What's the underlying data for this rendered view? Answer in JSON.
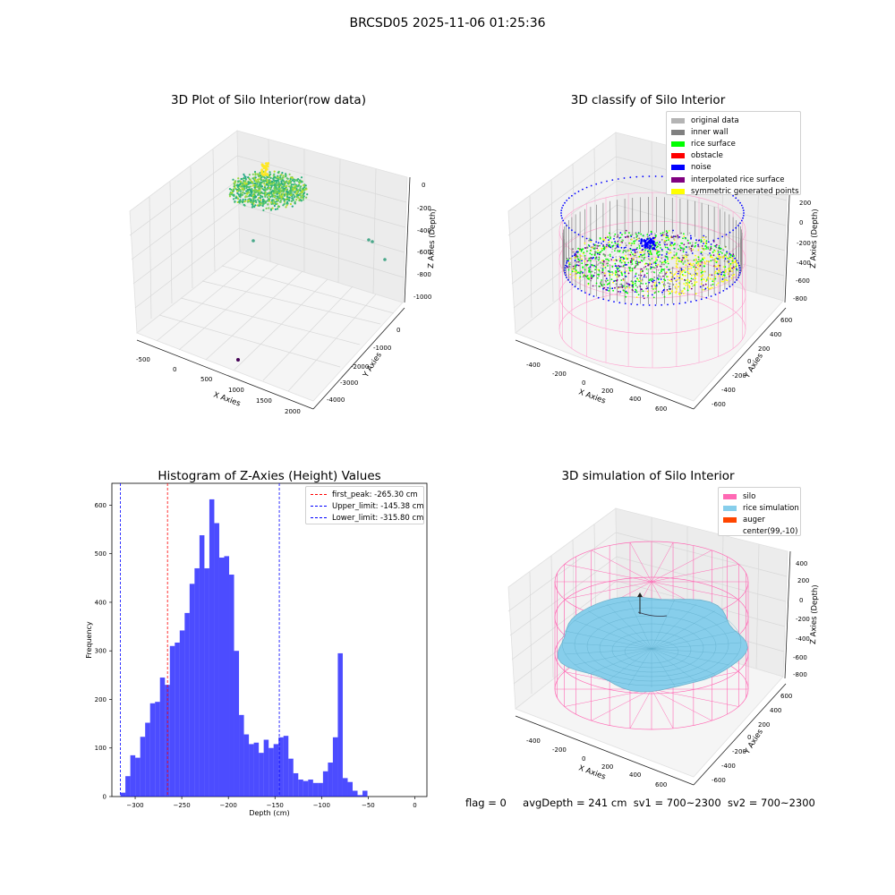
{
  "suptitle": "BRCSD05 2025-11-06 01:25:36",
  "panels": {
    "raw": {
      "title": "3D Plot of Silo Interior(row data)",
      "xlabel": "X Axies",
      "ylabel": "Y Axies",
      "zlabel": "Z Axies (Depth)",
      "xticks": [
        "-500",
        "0",
        "500",
        "1000",
        "1500",
        "2000"
      ],
      "yticks": [
        "0",
        "-1000",
        "-2000",
        "-3000",
        "-4000"
      ],
      "zticks": [
        "0",
        "-200",
        "-400",
        "-600",
        "-800",
        "-1000"
      ]
    },
    "classify": {
      "title": "3D classify of Silo Interior",
      "xlabel": "X Axies",
      "ylabel": "Y Axies",
      "zlabel": "Z Axies (Depth)",
      "xticks": [
        "-400",
        "-200",
        "0",
        "200",
        "400",
        "600"
      ],
      "yticks": [
        "600",
        "400",
        "200",
        "0",
        "-200",
        "-400",
        "-600"
      ],
      "zticks": [
        "200",
        "0",
        "-200",
        "-400",
        "-600",
        "-800"
      ],
      "legend": [
        {
          "label": "original data",
          "color": "#b4b4b4"
        },
        {
          "label": "inner wall",
          "color": "#808080"
        },
        {
          "label": "rice surface",
          "color": "#00ff00"
        },
        {
          "label": "obstacle",
          "color": "#ff0000"
        },
        {
          "label": "noise",
          "color": "#0000ff"
        },
        {
          "label": "interpolated rice surface",
          "color": "#800080"
        },
        {
          "label": "symmetric generated points",
          "color": "#ffff00"
        }
      ]
    },
    "simulation": {
      "title": "3D simulation of Silo Interior",
      "xlabel": "X Axies",
      "ylabel": "Y Axies",
      "zlabel": "Z Axies (Depth)",
      "xticks": [
        "-400",
        "-200",
        "0",
        "200",
        "400",
        "600"
      ],
      "yticks": [
        "600",
        "400",
        "200",
        "0",
        "-200",
        "-400",
        "-600"
      ],
      "zticks": [
        "400",
        "200",
        "0",
        "-200",
        "-400",
        "-600",
        "-800"
      ],
      "legend": [
        {
          "label": "silo",
          "color": "#ff69b4"
        },
        {
          "label": "rice simulation",
          "color": "#87ceeb"
        },
        {
          "label": "auger",
          "color": "#ff4500"
        },
        {
          "label": "center(99,-10)",
          "color": ""
        }
      ]
    }
  },
  "chart_data": {
    "type": "bar",
    "title": "Histogram of Z-Axies (Height) Values",
    "xlabel": "Depth (cm)",
    "ylabel": "Frequency",
    "xlim": [
      -325,
      13
    ],
    "ylim": [
      0,
      645
    ],
    "xticks": [
      -300,
      -250,
      -200,
      -150,
      -100,
      -50,
      0
    ],
    "yticks": [
      0,
      100,
      200,
      300,
      400,
      500,
      600
    ],
    "bar_color": "#0000ff",
    "bins": [
      {
        "x0": -315.8,
        "x1": -310.5,
        "value": 8
      },
      {
        "x0": -310.5,
        "x1": -305.2,
        "value": 42
      },
      {
        "x0": -305.2,
        "x1": -299.9,
        "value": 85
      },
      {
        "x0": -299.9,
        "x1": -294.6,
        "value": 80
      },
      {
        "x0": -294.6,
        "x1": -289.3,
        "value": 123
      },
      {
        "x0": -289.3,
        "x1": -284.0,
        "value": 152
      },
      {
        "x0": -284.0,
        "x1": -278.7,
        "value": 192
      },
      {
        "x0": -278.7,
        "x1": -273.4,
        "value": 195
      },
      {
        "x0": -273.4,
        "x1": -268.1,
        "value": 245
      },
      {
        "x0": -268.1,
        "x1": -262.8,
        "value": 230
      },
      {
        "x0": -262.8,
        "x1": -257.5,
        "value": 310
      },
      {
        "x0": -257.5,
        "x1": -252.2,
        "value": 317
      },
      {
        "x0": -252.2,
        "x1": -246.9,
        "value": 342
      },
      {
        "x0": -246.9,
        "x1": -241.6,
        "value": 378
      },
      {
        "x0": -241.6,
        "x1": -236.3,
        "value": 438
      },
      {
        "x0": -236.3,
        "x1": -231.0,
        "value": 470
      },
      {
        "x0": -231.0,
        "x1": -225.7,
        "value": 538
      },
      {
        "x0": -225.7,
        "x1": -220.4,
        "value": 470
      },
      {
        "x0": -220.4,
        "x1": -215.1,
        "value": 612
      },
      {
        "x0": -215.1,
        "x1": -209.8,
        "value": 563
      },
      {
        "x0": -209.8,
        "x1": -204.5,
        "value": 492
      },
      {
        "x0": -204.5,
        "x1": -199.2,
        "value": 495
      },
      {
        "x0": -199.2,
        "x1": -193.9,
        "value": 457
      },
      {
        "x0": -193.9,
        "x1": -188.6,
        "value": 300
      },
      {
        "x0": -188.6,
        "x1": -183.3,
        "value": 168
      },
      {
        "x0": -183.3,
        "x1": -178.0,
        "value": 128
      },
      {
        "x0": -178.0,
        "x1": -172.7,
        "value": 108
      },
      {
        "x0": -172.7,
        "x1": -167.4,
        "value": 111
      },
      {
        "x0": -167.4,
        "x1": -162.1,
        "value": 90
      },
      {
        "x0": -162.1,
        "x1": -156.8,
        "value": 117
      },
      {
        "x0": -156.8,
        "x1": -151.5,
        "value": 100
      },
      {
        "x0": -151.5,
        "x1": -146.2,
        "value": 108
      },
      {
        "x0": -146.2,
        "x1": -140.9,
        "value": 122
      },
      {
        "x0": -140.9,
        "x1": -135.6,
        "value": 125
      },
      {
        "x0": -135.6,
        "x1": -130.3,
        "value": 78
      },
      {
        "x0": -130.3,
        "x1": -125.0,
        "value": 48
      },
      {
        "x0": -125.0,
        "x1": -119.7,
        "value": 35
      },
      {
        "x0": -119.7,
        "x1": -114.4,
        "value": 32
      },
      {
        "x0": -114.4,
        "x1": -109.1,
        "value": 35
      },
      {
        "x0": -109.1,
        "x1": -103.8,
        "value": 28
      },
      {
        "x0": -103.8,
        "x1": -98.5,
        "value": 28
      },
      {
        "x0": -98.5,
        "x1": -93.2,
        "value": 52
      },
      {
        "x0": -93.2,
        "x1": -87.9,
        "value": 70
      },
      {
        "x0": -87.9,
        "x1": -82.6,
        "value": 122
      },
      {
        "x0": -82.6,
        "x1": -77.3,
        "value": 295
      },
      {
        "x0": -77.3,
        "x1": -72.0,
        "value": 38
      },
      {
        "x0": -72.0,
        "x1": -66.7,
        "value": 30
      },
      {
        "x0": -66.7,
        "x1": -61.4,
        "value": 12
      },
      {
        "x0": -61.4,
        "x1": -56.1,
        "value": 3
      },
      {
        "x0": -56.1,
        "x1": -50.8,
        "value": 12
      }
    ],
    "lines": [
      {
        "label": "first_peak: -265.30 cm",
        "x": -265.3,
        "color": "#ff0000"
      },
      {
        "label": "Upper_limit: -145.38 cm",
        "x": -145.38,
        "color": "#0000ff"
      },
      {
        "label": "Lower_limit: -315.80 cm",
        "x": -315.8,
        "color": "#0000ff"
      }
    ],
    "legend_position": "upper right"
  },
  "footer": {
    "flag": "flag = 0",
    "avg": "avgDepth = 241 cm",
    "sv1": "sv1 = 700~2300",
    "sv2": "sv2 = 700~2300"
  }
}
